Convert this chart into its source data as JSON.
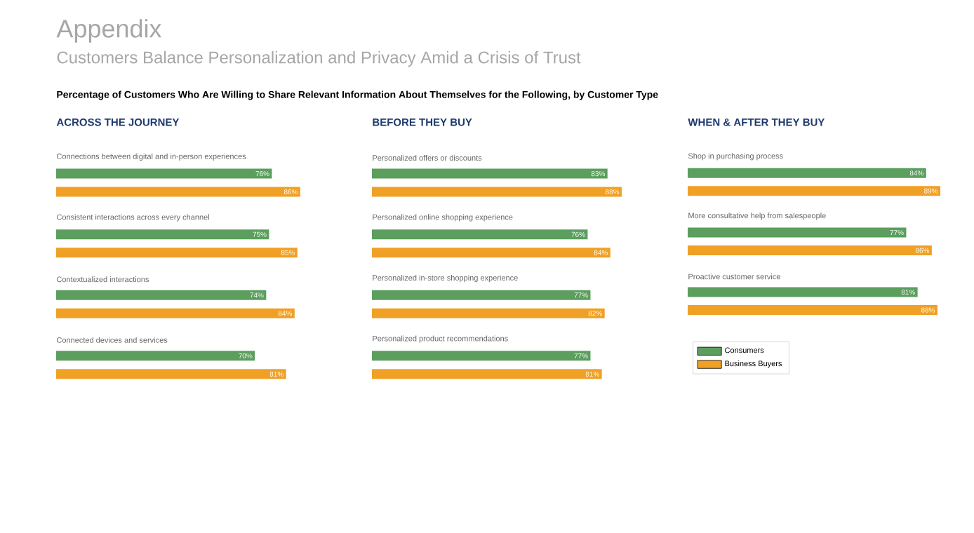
{
  "chart_data": [
    {
      "type": "bar",
      "orientation": "horizontal",
      "title": "ACROSS THE JOURNEY",
      "legend": false,
      "annotations": [
        "Appendix",
        "Customers Balance Personalization and Privacy Amid a Crisis of Trust",
        "Percentage of Customers Who Are Willing to Share Relevant Information About Themselves for the Following, by Customer Type"
      ],
      "categories": [
        "Connections between digital and in-person experiences",
        "Consistent interactions across every channel",
        "Contextualized interactions",
        "Connected devices and services"
      ],
      "series": [
        {
          "color": "#5b9e5e",
          "values": [
            76,
            75,
            74,
            70
          ],
          "value_labels": [
            "76%",
            "75%",
            "74%",
            "70%"
          ]
        },
        {
          "color": "#f0a024",
          "values": [
            86,
            85,
            84,
            81
          ],
          "value_labels": [
            "86%",
            "85%",
            "84%",
            "81%"
          ]
        }
      ]
    },
    {
      "type": "bar",
      "orientation": "horizontal",
      "title": "BEFORE THEY BUY",
      "legend": false,
      "categories": [
        "Personalized offers or discounts",
        "Personalized online shopping experience",
        "Personalized in-store shopping experience",
        "Personalized product recommendations"
      ],
      "series": [
        {
          "color": "#5b9e5e",
          "values": [
            83,
            76,
            77,
            77
          ],
          "value_labels": [
            "83%",
            "76%",
            "77%",
            "77%"
          ]
        },
        {
          "color": "#f0a024",
          "values": [
            88,
            84,
            82,
            81
          ],
          "value_labels": [
            "88%",
            "84%",
            "82%",
            "81%"
          ]
        }
      ]
    },
    {
      "type": "bar",
      "orientation": "horizontal",
      "title": "WHEN & AFTER THEY BUY",
      "legend": "bottom",
      "categories": [
        "Shop in purchasing process",
        "More consultative help from salespeople",
        "Proactive customer service"
      ],
      "series": [
        {
          "name": "Consumers",
          "color": "#5b9e5e",
          "values": [
            84,
            77,
            81
          ],
          "value_labels": [
            "84%",
            "77%",
            "81%"
          ]
        },
        {
          "name": "Business Buyers",
          "color": "#f0a024",
          "values": [
            89,
            86,
            88
          ],
          "value_labels": [
            "89%",
            "86%",
            "88%"
          ]
        }
      ]
    }
  ]
}
